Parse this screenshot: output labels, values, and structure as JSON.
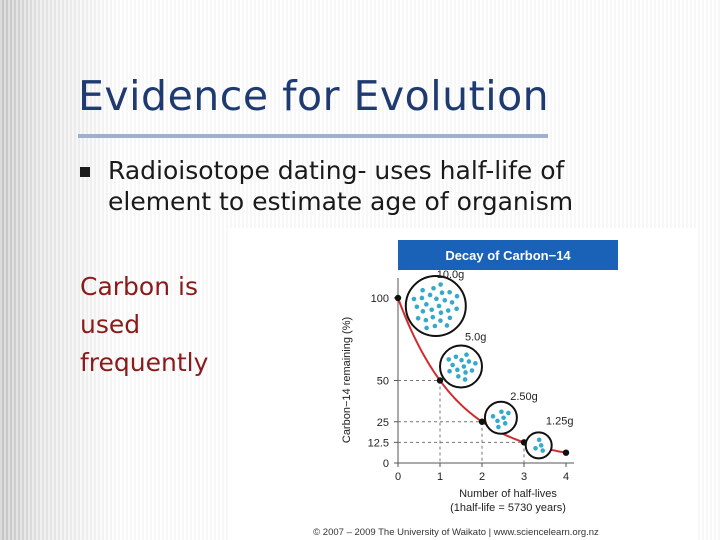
{
  "slide": {
    "title": "Evidence for Evolution",
    "bullet_text": "Radioisotope dating- uses half-life of\nelement to estimate age of organism",
    "side_text": "Carbon is\nused\nfrequently"
  },
  "colors": {
    "title": "#1f3a70",
    "side_text": "#8b1a1a",
    "chart_header": "#1a62b8",
    "curve": "#d22b2b",
    "atom": "#35a9cc"
  },
  "chart_data": {
    "type": "line",
    "title": "Decay of Carbon−14",
    "xlabel": "Number of half-lives",
    "xlabel2": "(1half-life = 5730 years)",
    "ylabel": "Carbon−14 remaining (%)",
    "x_ticks": [
      "0",
      "1",
      "2",
      "3",
      "4"
    ],
    "y_ticks": [
      "0",
      "12.5",
      "25",
      "50",
      "100"
    ],
    "xlim": [
      0,
      4
    ],
    "ylim": [
      0,
      100
    ],
    "series": [
      {
        "x": [
          0,
          1,
          2,
          3,
          4
        ],
        "values": [
          100,
          50,
          25,
          12.5,
          6.25
        ]
      }
    ],
    "mass_labels": [
      "10.0g",
      "5.0g",
      "2.50g",
      "1.25g"
    ],
    "credit": "© 2007 – 2009 The University of Waikato | www.sciencelearn.org.nz"
  }
}
